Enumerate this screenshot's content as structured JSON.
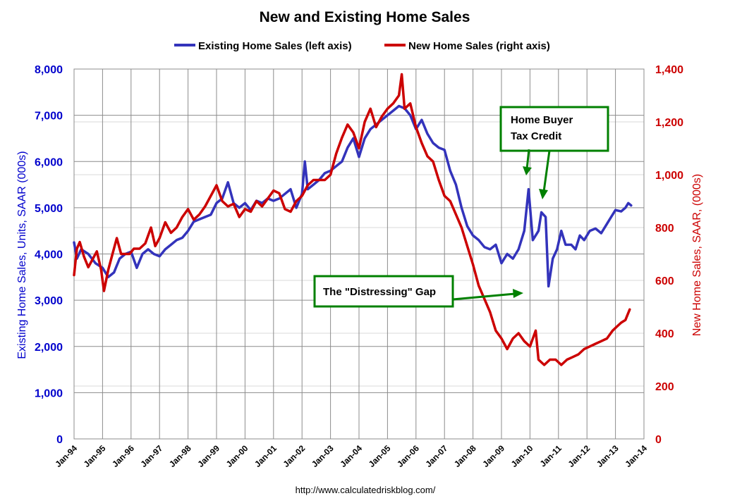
{
  "chart_data": {
    "type": "line",
    "title": "New and Existing Home Sales",
    "x_tick_labels": [
      "Jan-94",
      "Jan-95",
      "Jan-96",
      "Jan-97",
      "Jan-98",
      "Jan-99",
      "Jan-00",
      "Jan-01",
      "Jan-02",
      "Jan-03",
      "Jan-04",
      "Jan-05",
      "Jan-06",
      "Jan-07",
      "Jan-08",
      "Jan-09",
      "Jan-10",
      "Jan-11",
      "Jan-12",
      "Jan-13",
      "Jan-14"
    ],
    "xlim": [
      1994.0,
      2014.0
    ],
    "left_axis": {
      "label": "Existing Home Sales, Units, SAAR (000s)",
      "ylim": [
        0,
        8000
      ],
      "tick_labels": [
        "0",
        "1,000",
        "2,000",
        "3,000",
        "4,000",
        "5,000",
        "6,000",
        "7,000",
        "8,000"
      ],
      "color": "#0000cc"
    },
    "right_axis": {
      "label": "New Home Sales, SAAR, (000s)",
      "ylim": [
        0,
        1400
      ],
      "tick_labels": [
        "0",
        "200",
        "400",
        "600",
        "800",
        "1,000",
        "1,200",
        "1,400"
      ],
      "color": "#cc0000"
    },
    "series": [
      {
        "name": "Existing Home Sales (left axis)",
        "axis": "left",
        "color": "#3333bb",
        "points": [
          [
            1994.0,
            4250
          ],
          [
            1994.1,
            3900
          ],
          [
            1994.25,
            4100
          ],
          [
            1994.5,
            4000
          ],
          [
            1994.75,
            3800
          ],
          [
            1995.0,
            3700
          ],
          [
            1995.2,
            3500
          ],
          [
            1995.4,
            3600
          ],
          [
            1995.6,
            3900
          ],
          [
            1995.8,
            4000
          ],
          [
            1996.0,
            4050
          ],
          [
            1996.2,
            3700
          ],
          [
            1996.4,
            4000
          ],
          [
            1996.6,
            4100
          ],
          [
            1996.8,
            4000
          ],
          [
            1997.0,
            3950
          ],
          [
            1997.2,
            4100
          ],
          [
            1997.4,
            4200
          ],
          [
            1997.6,
            4300
          ],
          [
            1997.8,
            4350
          ],
          [
            1998.0,
            4500
          ],
          [
            1998.2,
            4700
          ],
          [
            1998.4,
            4750
          ],
          [
            1998.6,
            4800
          ],
          [
            1998.8,
            4850
          ],
          [
            1999.0,
            5100
          ],
          [
            1999.2,
            5200
          ],
          [
            1999.4,
            5550
          ],
          [
            1999.6,
            5100
          ],
          [
            1999.8,
            5000
          ],
          [
            2000.0,
            5100
          ],
          [
            2000.2,
            4950
          ],
          [
            2000.4,
            5150
          ],
          [
            2000.6,
            5100
          ],
          [
            2000.8,
            5200
          ],
          [
            2001.0,
            5150
          ],
          [
            2001.2,
            5200
          ],
          [
            2001.4,
            5300
          ],
          [
            2001.6,
            5400
          ],
          [
            2001.8,
            5000
          ],
          [
            2002.0,
            5300
          ],
          [
            2002.1,
            6000
          ],
          [
            2002.2,
            5400
          ],
          [
            2002.4,
            5500
          ],
          [
            2002.6,
            5600
          ],
          [
            2002.8,
            5750
          ],
          [
            2003.0,
            5800
          ],
          [
            2003.2,
            5900
          ],
          [
            2003.4,
            6000
          ],
          [
            2003.6,
            6300
          ],
          [
            2003.8,
            6500
          ],
          [
            2004.0,
            6100
          ],
          [
            2004.2,
            6500
          ],
          [
            2004.4,
            6700
          ],
          [
            2004.6,
            6800
          ],
          [
            2004.8,
            6900
          ],
          [
            2005.0,
            7000
          ],
          [
            2005.2,
            7100
          ],
          [
            2005.4,
            7200
          ],
          [
            2005.6,
            7150
          ],
          [
            2005.8,
            7000
          ],
          [
            2006.0,
            6700
          ],
          [
            2006.2,
            6900
          ],
          [
            2006.4,
            6600
          ],
          [
            2006.6,
            6400
          ],
          [
            2006.8,
            6300
          ],
          [
            2007.0,
            6250
          ],
          [
            2007.2,
            5800
          ],
          [
            2007.4,
            5500
          ],
          [
            2007.6,
            5000
          ],
          [
            2007.8,
            4600
          ],
          [
            2008.0,
            4400
          ],
          [
            2008.2,
            4300
          ],
          [
            2008.4,
            4150
          ],
          [
            2008.6,
            4100
          ],
          [
            2008.8,
            4200
          ],
          [
            2009.0,
            3800
          ],
          [
            2009.2,
            4000
          ],
          [
            2009.4,
            3900
          ],
          [
            2009.6,
            4100
          ],
          [
            2009.8,
            4500
          ],
          [
            2009.95,
            5400
          ],
          [
            2010.1,
            4300
          ],
          [
            2010.3,
            4500
          ],
          [
            2010.4,
            4900
          ],
          [
            2010.55,
            4800
          ],
          [
            2010.65,
            3300
          ],
          [
            2010.8,
            3900
          ],
          [
            2010.95,
            4100
          ],
          [
            2011.1,
            4500
          ],
          [
            2011.25,
            4200
          ],
          [
            2011.45,
            4200
          ],
          [
            2011.6,
            4100
          ],
          [
            2011.75,
            4400
          ],
          [
            2011.9,
            4300
          ],
          [
            2012.1,
            4500
          ],
          [
            2012.3,
            4550
          ],
          [
            2012.5,
            4450
          ],
          [
            2012.7,
            4650
          ],
          [
            2012.85,
            4800
          ],
          [
            2013.0,
            4950
          ],
          [
            2013.2,
            4920
          ],
          [
            2013.35,
            5000
          ],
          [
            2013.45,
            5100
          ],
          [
            2013.55,
            5050
          ]
        ]
      },
      {
        "name": "New Home Sales (right axis)",
        "axis": "right",
        "color": "#cc0000",
        "points": [
          [
            1994.0,
            620
          ],
          [
            1994.1,
            720
          ],
          [
            1994.2,
            745
          ],
          [
            1994.35,
            690
          ],
          [
            1994.5,
            650
          ],
          [
            1994.65,
            680
          ],
          [
            1994.8,
            710
          ],
          [
            1994.95,
            640
          ],
          [
            1995.05,
            560
          ],
          [
            1995.2,
            640
          ],
          [
            1995.35,
            700
          ],
          [
            1995.5,
            760
          ],
          [
            1995.65,
            700
          ],
          [
            1995.8,
            700
          ],
          [
            1995.95,
            700
          ],
          [
            1996.1,
            720
          ],
          [
            1996.3,
            720
          ],
          [
            1996.5,
            740
          ],
          [
            1996.7,
            800
          ],
          [
            1996.85,
            730
          ],
          [
            1997.0,
            760
          ],
          [
            1997.2,
            820
          ],
          [
            1997.4,
            780
          ],
          [
            1997.6,
            800
          ],
          [
            1997.8,
            840
          ],
          [
            1998.0,
            870
          ],
          [
            1998.2,
            830
          ],
          [
            1998.4,
            850
          ],
          [
            1998.6,
            880
          ],
          [
            1998.8,
            920
          ],
          [
            1999.0,
            960
          ],
          [
            1999.2,
            900
          ],
          [
            1999.4,
            880
          ],
          [
            1999.6,
            890
          ],
          [
            1999.8,
            840
          ],
          [
            2000.0,
            870
          ],
          [
            2000.2,
            860
          ],
          [
            2000.4,
            900
          ],
          [
            2000.6,
            880
          ],
          [
            2000.8,
            910
          ],
          [
            2001.0,
            940
          ],
          [
            2001.2,
            930
          ],
          [
            2001.4,
            870
          ],
          [
            2001.6,
            860
          ],
          [
            2001.8,
            900
          ],
          [
            2002.0,
            920
          ],
          [
            2002.2,
            960
          ],
          [
            2002.4,
            980
          ],
          [
            2002.6,
            980
          ],
          [
            2002.8,
            980
          ],
          [
            2003.0,
            1000
          ],
          [
            2003.2,
            1080
          ],
          [
            2003.4,
            1140
          ],
          [
            2003.6,
            1190
          ],
          [
            2003.8,
            1160
          ],
          [
            2004.0,
            1100
          ],
          [
            2004.2,
            1200
          ],
          [
            2004.4,
            1250
          ],
          [
            2004.6,
            1180
          ],
          [
            2004.8,
            1220
          ],
          [
            2005.0,
            1250
          ],
          [
            2005.2,
            1270
          ],
          [
            2005.4,
            1300
          ],
          [
            2005.5,
            1380
          ],
          [
            2005.6,
            1250
          ],
          [
            2005.8,
            1270
          ],
          [
            2006.0,
            1180
          ],
          [
            2006.2,
            1120
          ],
          [
            2006.4,
            1070
          ],
          [
            2006.6,
            1050
          ],
          [
            2006.8,
            980
          ],
          [
            2007.0,
            920
          ],
          [
            2007.2,
            900
          ],
          [
            2007.4,
            850
          ],
          [
            2007.6,
            800
          ],
          [
            2007.8,
            730
          ],
          [
            2008.0,
            660
          ],
          [
            2008.2,
            580
          ],
          [
            2008.4,
            530
          ],
          [
            2008.6,
            480
          ],
          [
            2008.8,
            410
          ],
          [
            2009.0,
            380
          ],
          [
            2009.2,
            340
          ],
          [
            2009.4,
            380
          ],
          [
            2009.6,
            400
          ],
          [
            2009.8,
            370
          ],
          [
            2010.0,
            350
          ],
          [
            2010.2,
            410
          ],
          [
            2010.3,
            300
          ],
          [
            2010.5,
            280
          ],
          [
            2010.7,
            300
          ],
          [
            2010.9,
            300
          ],
          [
            2011.1,
            280
          ],
          [
            2011.3,
            300
          ],
          [
            2011.5,
            310
          ],
          [
            2011.7,
            320
          ],
          [
            2011.9,
            340
          ],
          [
            2012.1,
            350
          ],
          [
            2012.3,
            360
          ],
          [
            2012.5,
            370
          ],
          [
            2012.7,
            380
          ],
          [
            2012.9,
            410
          ],
          [
            2013.0,
            420
          ],
          [
            2013.2,
            440
          ],
          [
            2013.35,
            450
          ],
          [
            2013.5,
            490
          ]
        ]
      }
    ],
    "annotations": [
      {
        "id": "tax-credit",
        "lines": [
          "Home Buyer",
          "Tax Credit"
        ],
        "box_color": "#008000",
        "arrow_color": "#008000"
      },
      {
        "id": "gap",
        "lines": [
          "The \"Distressing\" Gap"
        ],
        "box_color": "#008000",
        "arrow_color": "#008000"
      }
    ],
    "grid": true,
    "legend": "top-center"
  },
  "source_text": "http://www.calculatedriskblog.com/"
}
